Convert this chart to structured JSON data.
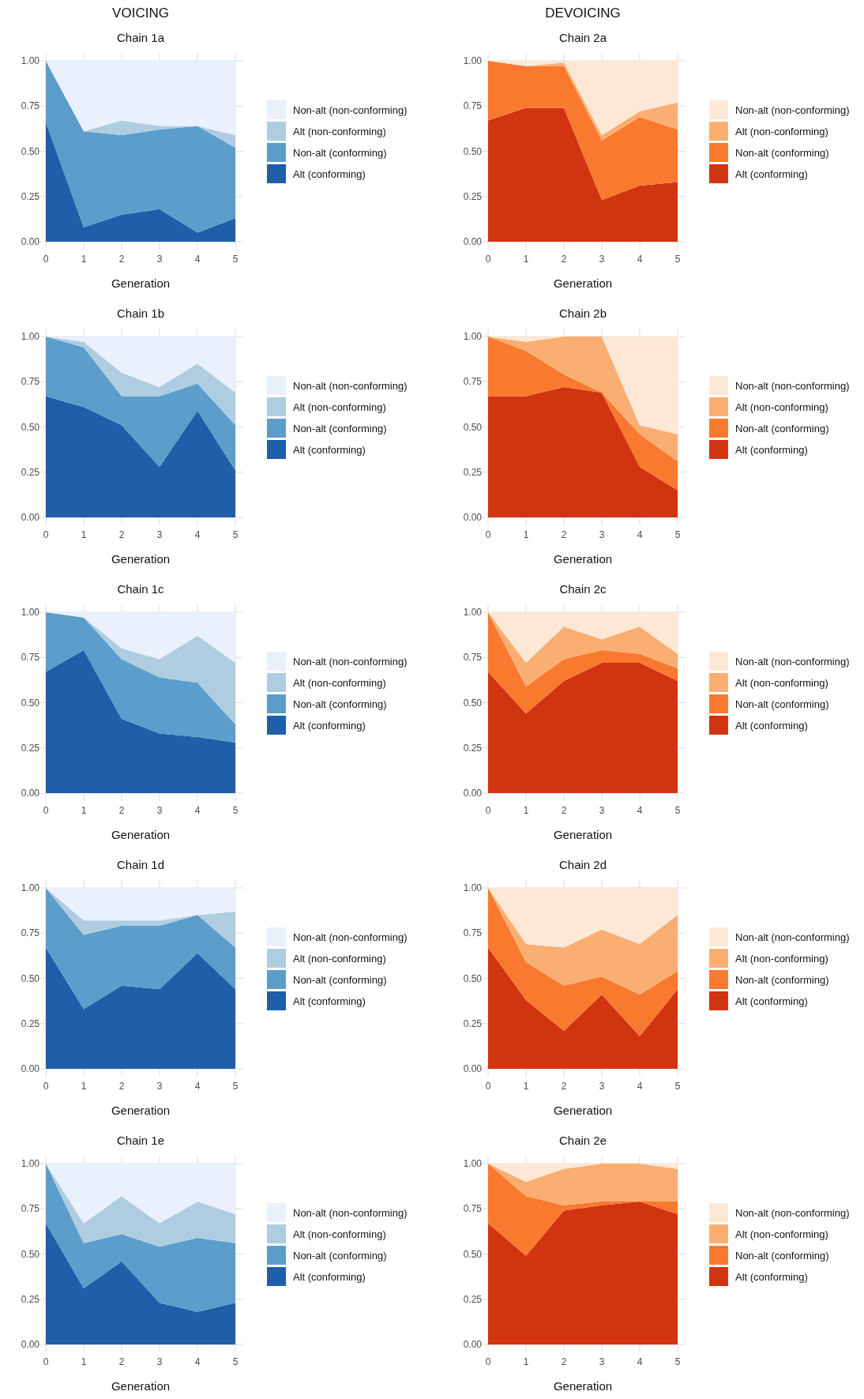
{
  "chart_data": [
    {
      "type": "area",
      "stacked": true,
      "title": "VOICING",
      "subtitle": "Chain 1a",
      "xlabel": "Generation",
      "x": [
        0,
        1,
        2,
        3,
        4,
        5
      ],
      "xlim": [
        0,
        5
      ],
      "xticks": [
        0,
        1,
        2,
        3,
        4,
        5
      ],
      "ylim": [
        0,
        1
      ],
      "yticks": [
        {
          "value": 0,
          "label": "0.00"
        },
        {
          "value": 0.25,
          "label": "0.25"
        },
        {
          "value": 0.5,
          "label": "0.50"
        },
        {
          "value": 0.75,
          "label": "0.75"
        },
        {
          "value": 1,
          "label": "1.00"
        }
      ],
      "grid": true,
      "legend": "right",
      "series": [
        {
          "name": "Alt (conforming)",
          "color": "#1f5ea8",
          "values": [
            0.66,
            0.08,
            0.15,
            0.18,
            0.05,
            0.13
          ]
        },
        {
          "name": "Non-alt (conforming)",
          "color": "#5b9dcb",
          "values": [
            0.34,
            0.53,
            0.44,
            0.44,
            0.59,
            0.39
          ]
        },
        {
          "name": "Alt (non-conforming)",
          "color": "#aecde1",
          "values": [
            0,
            0,
            0.08,
            0.02,
            0,
            0.07
          ]
        },
        {
          "name": "Non-alt (non-conforming)",
          "color": "#eaf0fc",
          "values": [
            0,
            0.39,
            0.33,
            0.36,
            0.36,
            0.41
          ]
        }
      ]
    },
    {
      "type": "area",
      "stacked": true,
      "title": "DEVOICING",
      "subtitle": "Chain 2a",
      "xlabel": "Generation",
      "x": [
        0,
        1,
        2,
        3,
        4,
        5
      ],
      "xlim": [
        0,
        5
      ],
      "xticks": [
        0,
        1,
        2,
        3,
        4,
        5
      ],
      "ylim": [
        0,
        1
      ],
      "yticks": [
        {
          "value": 0,
          "label": "0.00"
        },
        {
          "value": 0.25,
          "label": "0.25"
        },
        {
          "value": 0.5,
          "label": "0.50"
        },
        {
          "value": 0.75,
          "label": "0.75"
        },
        {
          "value": 1,
          "label": "1.00"
        }
      ],
      "grid": true,
      "legend": "right",
      "series": [
        {
          "name": "Alt (conforming)",
          "color": "#d13410",
          "values": [
            0.67,
            0.74,
            0.74,
            0.23,
            0.31,
            0.33
          ]
        },
        {
          "name": "Non-alt (conforming)",
          "color": "#f9792f",
          "values": [
            0.33,
            0.23,
            0.23,
            0.33,
            0.38,
            0.29
          ]
        },
        {
          "name": "Alt (non-conforming)",
          "color": "#fbae72",
          "values": [
            0,
            0,
            0.02,
            0.03,
            0.03,
            0.15
          ]
        },
        {
          "name": "Non-alt (non-conforming)",
          "color": "#fde8d6",
          "values": [
            0,
            0.03,
            0.01,
            0.41,
            0.28,
            0.23
          ]
        }
      ]
    },
    {
      "type": "area",
      "stacked": true,
      "title": "Chain 1b",
      "xlabel": "Generation",
      "x": [
        0,
        1,
        2,
        3,
        4,
        5
      ],
      "xlim": [
        0,
        5
      ],
      "xticks": [
        0,
        1,
        2,
        3,
        4,
        5
      ],
      "ylim": [
        0,
        1
      ],
      "yticks": [
        {
          "value": 0,
          "label": "0.00"
        },
        {
          "value": 0.25,
          "label": "0.25"
        },
        {
          "value": 0.5,
          "label": "0.50"
        },
        {
          "value": 0.75,
          "label": "0.75"
        },
        {
          "value": 1,
          "label": "1.00"
        }
      ],
      "grid": true,
      "legend": "right",
      "series": [
        {
          "name": "Alt (conforming)",
          "color": "#1f5ea8",
          "values": [
            0.67,
            0.61,
            0.51,
            0.28,
            0.59,
            0.26
          ]
        },
        {
          "name": "Non-alt (conforming)",
          "color": "#5b9dcb",
          "values": [
            0.33,
            0.33,
            0.16,
            0.39,
            0.15,
            0.25
          ]
        },
        {
          "name": "Alt (non-conforming)",
          "color": "#aecde1",
          "values": [
            0,
            0.03,
            0.13,
            0.05,
            0.11,
            0.18
          ]
        },
        {
          "name": "Non-alt (non-conforming)",
          "color": "#eaf0fc",
          "values": [
            0,
            0.03,
            0.2,
            0.28,
            0.15,
            0.31
          ]
        }
      ]
    },
    {
      "type": "area",
      "stacked": true,
      "title": "Chain 2b",
      "xlabel": "Generation",
      "x": [
        0,
        1,
        2,
        3,
        4,
        5
      ],
      "xlim": [
        0,
        5
      ],
      "xticks": [
        0,
        1,
        2,
        3,
        4,
        5
      ],
      "ylim": [
        0,
        1
      ],
      "yticks": [
        {
          "value": 0,
          "label": "0.00"
        },
        {
          "value": 0.25,
          "label": "0.25"
        },
        {
          "value": 0.5,
          "label": "0.50"
        },
        {
          "value": 0.75,
          "label": "0.75"
        },
        {
          "value": 1,
          "label": "1.00"
        }
      ],
      "grid": true,
      "legend": "right",
      "series": [
        {
          "name": "Alt (conforming)",
          "color": "#d13410",
          "values": [
            0.67,
            0.67,
            0.72,
            0.69,
            0.28,
            0.15
          ]
        },
        {
          "name": "Non-alt (conforming)",
          "color": "#f9792f",
          "values": [
            0.33,
            0.25,
            0.07,
            0,
            0.18,
            0.16
          ]
        },
        {
          "name": "Alt (non-conforming)",
          "color": "#fbae72",
          "values": [
            0,
            0.05,
            0.21,
            0.31,
            0.05,
            0.15
          ]
        },
        {
          "name": "Non-alt (non-conforming)",
          "color": "#fde8d6",
          "values": [
            0,
            0.03,
            0,
            0,
            0.49,
            0.54
          ]
        }
      ]
    },
    {
      "type": "area",
      "stacked": true,
      "title": "Chain 1c",
      "xlabel": "Generation",
      "x": [
        0,
        1,
        2,
        3,
        4,
        5
      ],
      "xlim": [
        0,
        5
      ],
      "xticks": [
        0,
        1,
        2,
        3,
        4,
        5
      ],
      "ylim": [
        0,
        1
      ],
      "yticks": [
        {
          "value": 0,
          "label": "0.00"
        },
        {
          "value": 0.25,
          "label": "0.25"
        },
        {
          "value": 0.5,
          "label": "0.50"
        },
        {
          "value": 0.75,
          "label": "0.75"
        },
        {
          "value": 1,
          "label": "1.00"
        }
      ],
      "grid": true,
      "legend": "right",
      "series": [
        {
          "name": "Alt (conforming)",
          "color": "#1f5ea8",
          "values": [
            0.67,
            0.79,
            0.41,
            0.33,
            0.31,
            0.28
          ]
        },
        {
          "name": "Non-alt (conforming)",
          "color": "#5b9dcb",
          "values": [
            0.33,
            0.18,
            0.33,
            0.31,
            0.3,
            0.1
          ]
        },
        {
          "name": "Alt (non-conforming)",
          "color": "#aecde1",
          "values": [
            0,
            0,
            0.06,
            0.1,
            0.26,
            0.34
          ]
        },
        {
          "name": "Non-alt (non-conforming)",
          "color": "#eaf0fc",
          "values": [
            0,
            0.03,
            0.2,
            0.26,
            0.13,
            0.28
          ]
        }
      ]
    },
    {
      "type": "area",
      "stacked": true,
      "title": "Chain 2c",
      "xlabel": "Generation",
      "x": [
        0,
        1,
        2,
        3,
        4,
        5
      ],
      "xlim": [
        0,
        5
      ],
      "xticks": [
        0,
        1,
        2,
        3,
        4,
        5
      ],
      "ylim": [
        0,
        1
      ],
      "yticks": [
        {
          "value": 0,
          "label": "0.00"
        },
        {
          "value": 0.25,
          "label": "0.25"
        },
        {
          "value": 0.5,
          "label": "0.50"
        },
        {
          "value": 0.75,
          "label": "0.75"
        },
        {
          "value": 1,
          "label": "1.00"
        }
      ],
      "grid": true,
      "legend": "right",
      "series": [
        {
          "name": "Alt (conforming)",
          "color": "#d13410",
          "values": [
            0.67,
            0.44,
            0.62,
            0.72,
            0.72,
            0.62
          ]
        },
        {
          "name": "Non-alt (conforming)",
          "color": "#f9792f",
          "values": [
            0.33,
            0.15,
            0.12,
            0.07,
            0.05,
            0.07
          ]
        },
        {
          "name": "Alt (non-conforming)",
          "color": "#fbae72",
          "values": [
            0,
            0.13,
            0.18,
            0.06,
            0.15,
            0.08
          ]
        },
        {
          "name": "Non-alt (non-conforming)",
          "color": "#fde8d6",
          "values": [
            0,
            0.28,
            0.08,
            0.15,
            0.08,
            0.23
          ]
        }
      ]
    },
    {
      "type": "area",
      "stacked": true,
      "title": "Chain 1d",
      "xlabel": "Generation",
      "x": [
        0,
        1,
        2,
        3,
        4,
        5
      ],
      "xlim": [
        0,
        5
      ],
      "xticks": [
        0,
        1,
        2,
        3,
        4,
        5
      ],
      "ylim": [
        0,
        1
      ],
      "yticks": [
        {
          "value": 0,
          "label": "0.00"
        },
        {
          "value": 0.25,
          "label": "0.25"
        },
        {
          "value": 0.5,
          "label": "0.50"
        },
        {
          "value": 0.75,
          "label": "0.75"
        },
        {
          "value": 1,
          "label": "1.00"
        }
      ],
      "grid": true,
      "legend": "right",
      "series": [
        {
          "name": "Alt (conforming)",
          "color": "#1f5ea8",
          "values": [
            0.67,
            0.33,
            0.46,
            0.44,
            0.64,
            0.44
          ]
        },
        {
          "name": "Non-alt (conforming)",
          "color": "#5b9dcb",
          "values": [
            0.33,
            0.41,
            0.33,
            0.35,
            0.21,
            0.23
          ]
        },
        {
          "name": "Alt (non-conforming)",
          "color": "#aecde1",
          "values": [
            0,
            0.08,
            0.03,
            0.03,
            0,
            0.2
          ]
        },
        {
          "name": "Non-alt (non-conforming)",
          "color": "#eaf0fc",
          "values": [
            0,
            0.18,
            0.18,
            0.18,
            0.15,
            0.13
          ]
        }
      ]
    },
    {
      "type": "area",
      "stacked": true,
      "title": "Chain 2d",
      "xlabel": "Generation",
      "x": [
        0,
        1,
        2,
        3,
        4,
        5
      ],
      "xlim": [
        0,
        5
      ],
      "xticks": [
        0,
        1,
        2,
        3,
        4,
        5
      ],
      "ylim": [
        0,
        1
      ],
      "yticks": [
        {
          "value": 0,
          "label": "0.00"
        },
        {
          "value": 0.25,
          "label": "0.25"
        },
        {
          "value": 0.5,
          "label": "0.50"
        },
        {
          "value": 0.75,
          "label": "0.75"
        },
        {
          "value": 1,
          "label": "1.00"
        }
      ],
      "grid": true,
      "legend": "right",
      "series": [
        {
          "name": "Alt (conforming)",
          "color": "#d13410",
          "values": [
            0.67,
            0.38,
            0.21,
            0.41,
            0.18,
            0.44
          ]
        },
        {
          "name": "Non-alt (conforming)",
          "color": "#f9792f",
          "values": [
            0.33,
            0.21,
            0.25,
            0.1,
            0.23,
            0.1
          ]
        },
        {
          "name": "Alt (non-conforming)",
          "color": "#fbae72",
          "values": [
            0,
            0.1,
            0.21,
            0.26,
            0.28,
            0.31
          ]
        },
        {
          "name": "Non-alt (non-conforming)",
          "color": "#fde8d6",
          "values": [
            0,
            0.31,
            0.33,
            0.23,
            0.31,
            0.15
          ]
        }
      ]
    },
    {
      "type": "area",
      "stacked": true,
      "title": "Chain 1e",
      "xlabel": "Generation",
      "x": [
        0,
        1,
        2,
        3,
        4,
        5
      ],
      "xlim": [
        0,
        5
      ],
      "xticks": [
        0,
        1,
        2,
        3,
        4,
        5
      ],
      "ylim": [
        0,
        1
      ],
      "yticks": [
        {
          "value": 0,
          "label": "0.00"
        },
        {
          "value": 0.25,
          "label": "0.25"
        },
        {
          "value": 0.5,
          "label": "0.50"
        },
        {
          "value": 0.75,
          "label": "0.75"
        },
        {
          "value": 1,
          "label": "1.00"
        }
      ],
      "grid": true,
      "legend": "right",
      "series": [
        {
          "name": "Alt (conforming)",
          "color": "#1f5ea8",
          "values": [
            0.67,
            0.31,
            0.46,
            0.23,
            0.18,
            0.23
          ]
        },
        {
          "name": "Non-alt (conforming)",
          "color": "#5b9dcb",
          "values": [
            0.33,
            0.25,
            0.15,
            0.31,
            0.41,
            0.33
          ]
        },
        {
          "name": "Alt (non-conforming)",
          "color": "#aecde1",
          "values": [
            0,
            0.11,
            0.21,
            0.13,
            0.2,
            0.16
          ]
        },
        {
          "name": "Non-alt (non-conforming)",
          "color": "#eaf0fc",
          "values": [
            0,
            0.33,
            0.18,
            0.33,
            0.21,
            0.28
          ]
        }
      ]
    },
    {
      "type": "area",
      "stacked": true,
      "title": "Chain 2e",
      "xlabel": "Generation",
      "x": [
        0,
        1,
        2,
        3,
        4,
        5
      ],
      "xlim": [
        0,
        5
      ],
      "xticks": [
        0,
        1,
        2,
        3,
        4,
        5
      ],
      "ylim": [
        0,
        1
      ],
      "yticks": [
        {
          "value": 0,
          "label": "0.00"
        },
        {
          "value": 0.25,
          "label": "0.25"
        },
        {
          "value": 0.5,
          "label": "0.50"
        },
        {
          "value": 0.75,
          "label": "0.75"
        },
        {
          "value": 1,
          "label": "1.00"
        }
      ],
      "grid": true,
      "legend": "right",
      "series": [
        {
          "name": "Alt (conforming)",
          "color": "#d13410",
          "values": [
            0.67,
            0.49,
            0.74,
            0.77,
            0.79,
            0.72
          ]
        },
        {
          "name": "Non-alt (conforming)",
          "color": "#f9792f",
          "values": [
            0.33,
            0.33,
            0.03,
            0.02,
            0,
            0.07
          ]
        },
        {
          "name": "Alt (non-conforming)",
          "color": "#fbae72",
          "values": [
            0,
            0.08,
            0.2,
            0.21,
            0.21,
            0.18
          ]
        },
        {
          "name": "Non-alt (non-conforming)",
          "color": "#fde8d6",
          "values": [
            0,
            0.1,
            0.03,
            0,
            0,
            0.03
          ]
        }
      ]
    }
  ]
}
